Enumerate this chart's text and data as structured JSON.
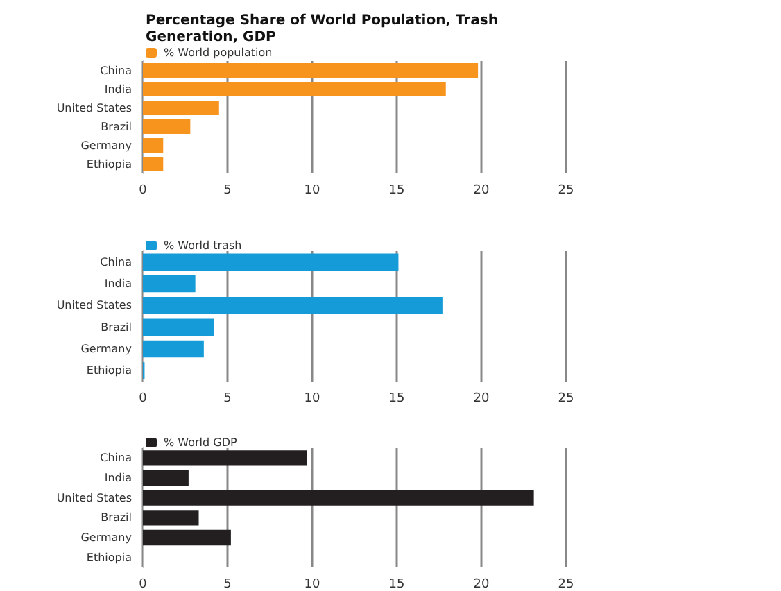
{
  "chart_data": [
    {
      "type": "bar",
      "orientation": "horizontal",
      "title": "Percentage Share of World Population, Trash Generation, GDP",
      "categories": [
        "China",
        "India",
        "United States",
        "Brazil",
        "Germany",
        "Ethiopia"
      ],
      "series": [
        {
          "name": "% World population",
          "color": "#f7941d",
          "values": [
            19.8,
            17.9,
            4.5,
            2.8,
            1.2,
            1.2
          ]
        }
      ],
      "xlim": [
        0,
        25
      ],
      "xticks": [
        0,
        5,
        10,
        15,
        20,
        25
      ],
      "grid": "x",
      "legend": "top left"
    },
    {
      "type": "bar",
      "orientation": "horizontal",
      "categories": [
        "China",
        "India",
        "United States",
        "Brazil",
        "Germany",
        "Ethiopia"
      ],
      "series": [
        {
          "name": "% World trash",
          "color": "#159cd8",
          "values": [
            15.1,
            3.1,
            17.7,
            4.2,
            3.6,
            0.1
          ]
        }
      ],
      "xlim": [
        0,
        25
      ],
      "xticks": [
        0,
        5,
        10,
        15,
        20,
        25
      ],
      "grid": "x",
      "legend": "top left"
    },
    {
      "type": "bar",
      "orientation": "horizontal",
      "categories": [
        "China",
        "India",
        "United States",
        "Brazil",
        "Germany",
        "Ethiopia"
      ],
      "series": [
        {
          "name": "% World GDP",
          "color": "#231f20",
          "values": [
            9.7,
            2.7,
            23.1,
            3.3,
            5.2,
            null
          ]
        }
      ],
      "xlim": [
        0,
        25
      ],
      "xticks": [
        0,
        5,
        10,
        15,
        20,
        25
      ],
      "grid": "x",
      "legend": "top left"
    }
  ]
}
